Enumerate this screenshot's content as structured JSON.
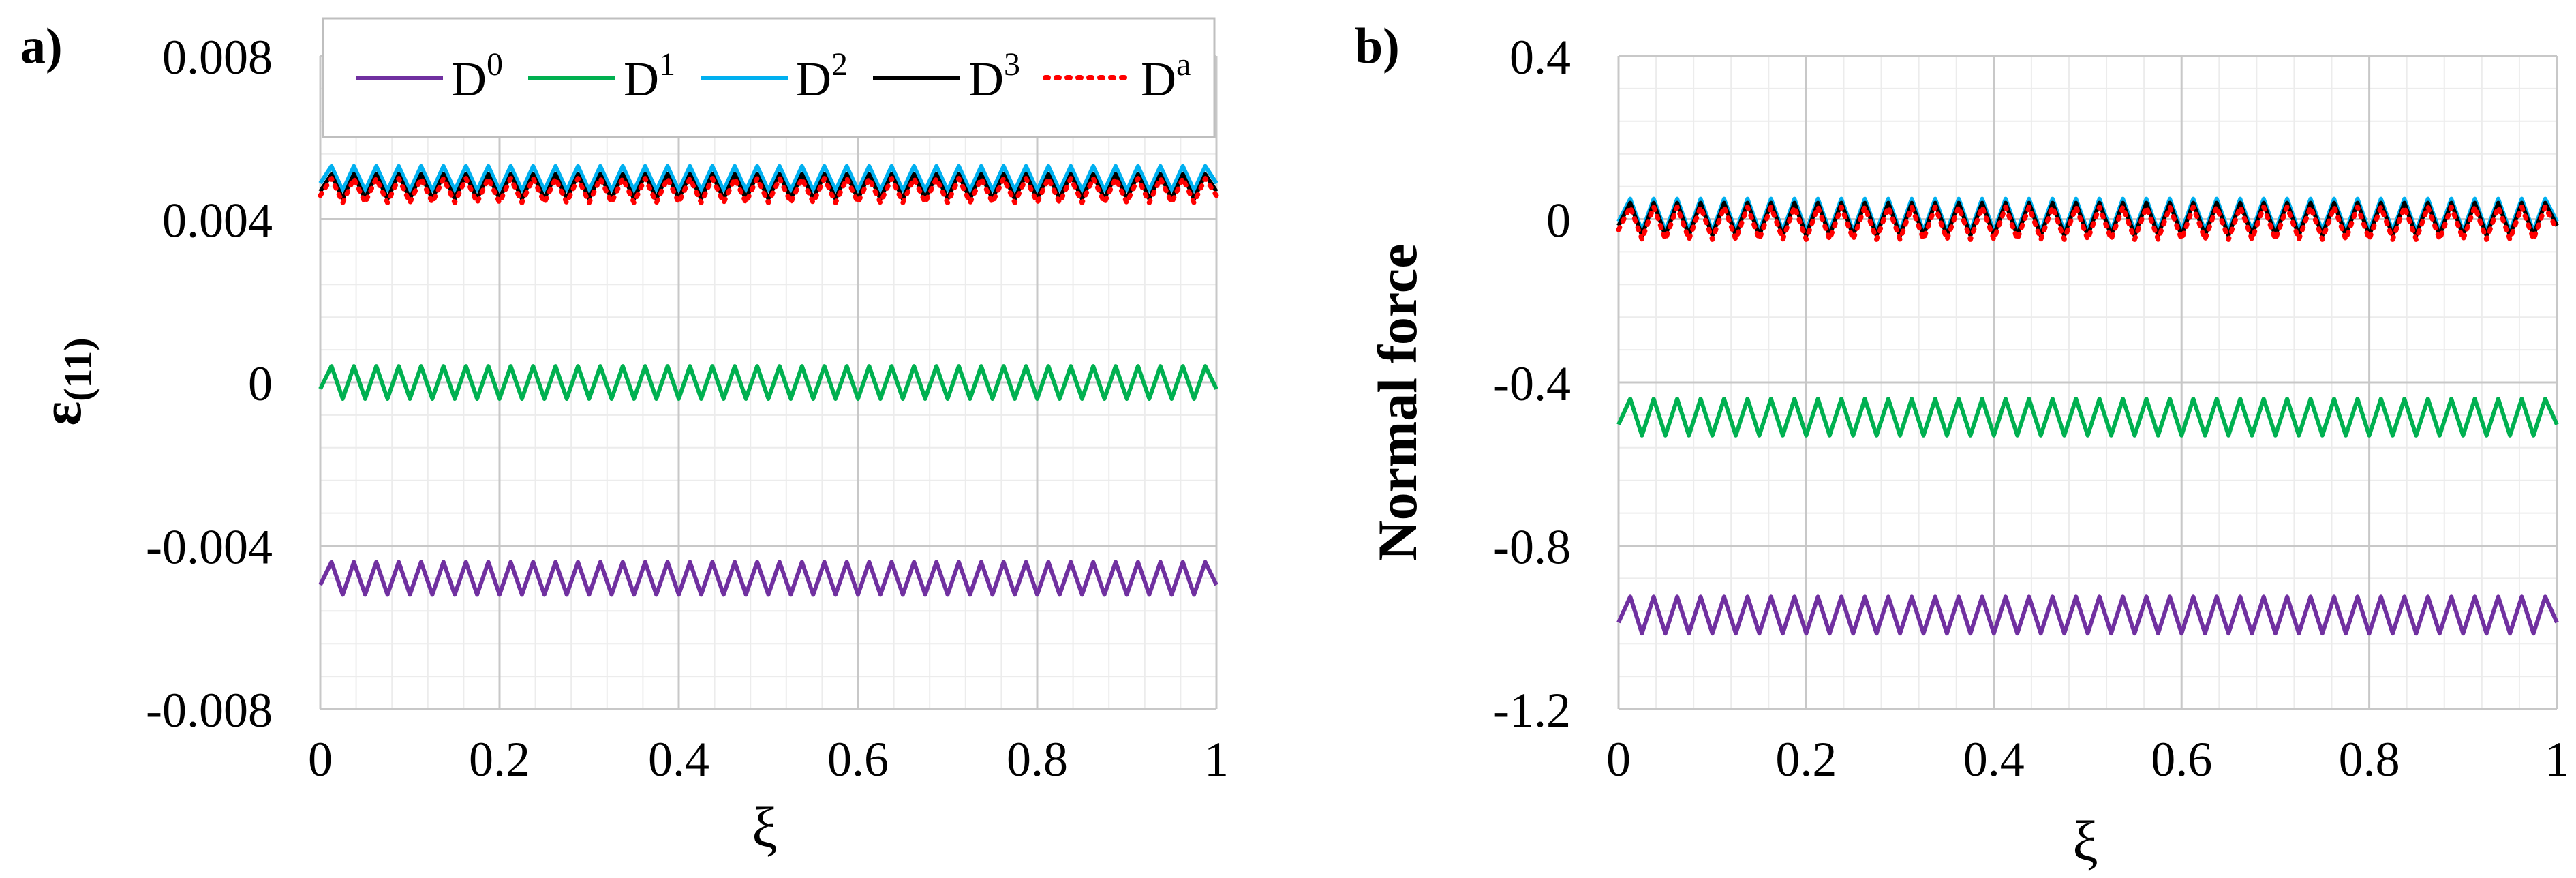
{
  "chart_data": [
    {
      "type": "line",
      "panel_label": "a)",
      "xlabel": "ξ",
      "ylabel_base": "ε",
      "ylabel_sub": "(11)",
      "xlim": [
        0,
        1
      ],
      "ylim": [
        -0.008,
        0.008
      ],
      "x_ticks": [
        0,
        0.2,
        0.4,
        0.6,
        0.8,
        1
      ],
      "x_tick_labels": [
        "0",
        "0.2",
        "0.4",
        "0.6",
        "0.8",
        "1"
      ],
      "y_ticks": [
        -0.008,
        -0.004,
        0,
        0.004,
        0.008
      ],
      "y_tick_labels": [
        "-0.008",
        "-0.004",
        "0",
        "0.004",
        "0.008"
      ],
      "grid": true,
      "cycles": 40,
      "legend": {
        "placement": "top"
      },
      "series": [
        {
          "key": "D0",
          "name": "D",
          "sup": "0",
          "color": "#7030A0",
          "style": "solid",
          "mean": -0.0048,
          "amplitude": 0.0004
        },
        {
          "key": "D1",
          "name": "D",
          "sup": "1",
          "color": "#00B050",
          "style": "solid",
          "mean": 0.0,
          "amplitude": 0.0004
        },
        {
          "key": "D2",
          "name": "D",
          "sup": "2",
          "color": "#00B0F0",
          "style": "solid",
          "mean": 0.005,
          "amplitude": 0.0003
        },
        {
          "key": "D3",
          "name": "D",
          "sup": "3",
          "color": "#000000",
          "style": "solid",
          "mean": 0.0048,
          "amplitude": 0.0003
        },
        {
          "key": "Da",
          "name": "D",
          "sup": "a",
          "color": "#FF0000",
          "style": "dotted",
          "mean": 0.0047,
          "amplitude": 0.0003
        }
      ]
    },
    {
      "type": "line",
      "panel_label": "b)",
      "xlabel": "ξ",
      "ylabel": "Normal force",
      "xlim": [
        0,
        1
      ],
      "ylim": [
        -1.2,
        0.4
      ],
      "x_ticks": [
        0,
        0.2,
        0.4,
        0.6,
        0.8,
        1
      ],
      "x_tick_labels": [
        "0",
        "0.2",
        "0.4",
        "0.6",
        "0.8",
        "1"
      ],
      "y_ticks": [
        -1.2,
        -0.8,
        -0.4,
        0,
        0.4
      ],
      "y_tick_labels": [
        "-1.2",
        "-0.8",
        "-0.4",
        "0",
        "0.4"
      ],
      "grid": true,
      "cycles": 40,
      "series": [
        {
          "key": "D0",
          "name": "D",
          "sup": "0",
          "color": "#7030A0",
          "style": "solid",
          "mean": -0.97,
          "amplitude": 0.045
        },
        {
          "key": "D1",
          "name": "D",
          "sup": "1",
          "color": "#00B050",
          "style": "solid",
          "mean": -0.485,
          "amplitude": 0.045
        },
        {
          "key": "D2",
          "name": "D",
          "sup": "2",
          "color": "#00B0F0",
          "style": "solid",
          "mean": 0.01,
          "amplitude": 0.04
        },
        {
          "key": "D3",
          "name": "D",
          "sup": "3",
          "color": "#000000",
          "style": "solid",
          "mean": 0.0,
          "amplitude": 0.04
        },
        {
          "key": "Da",
          "name": "D",
          "sup": "a",
          "color": "#FF0000",
          "style": "dotted",
          "mean": -0.01,
          "amplitude": 0.04
        }
      ]
    }
  ]
}
